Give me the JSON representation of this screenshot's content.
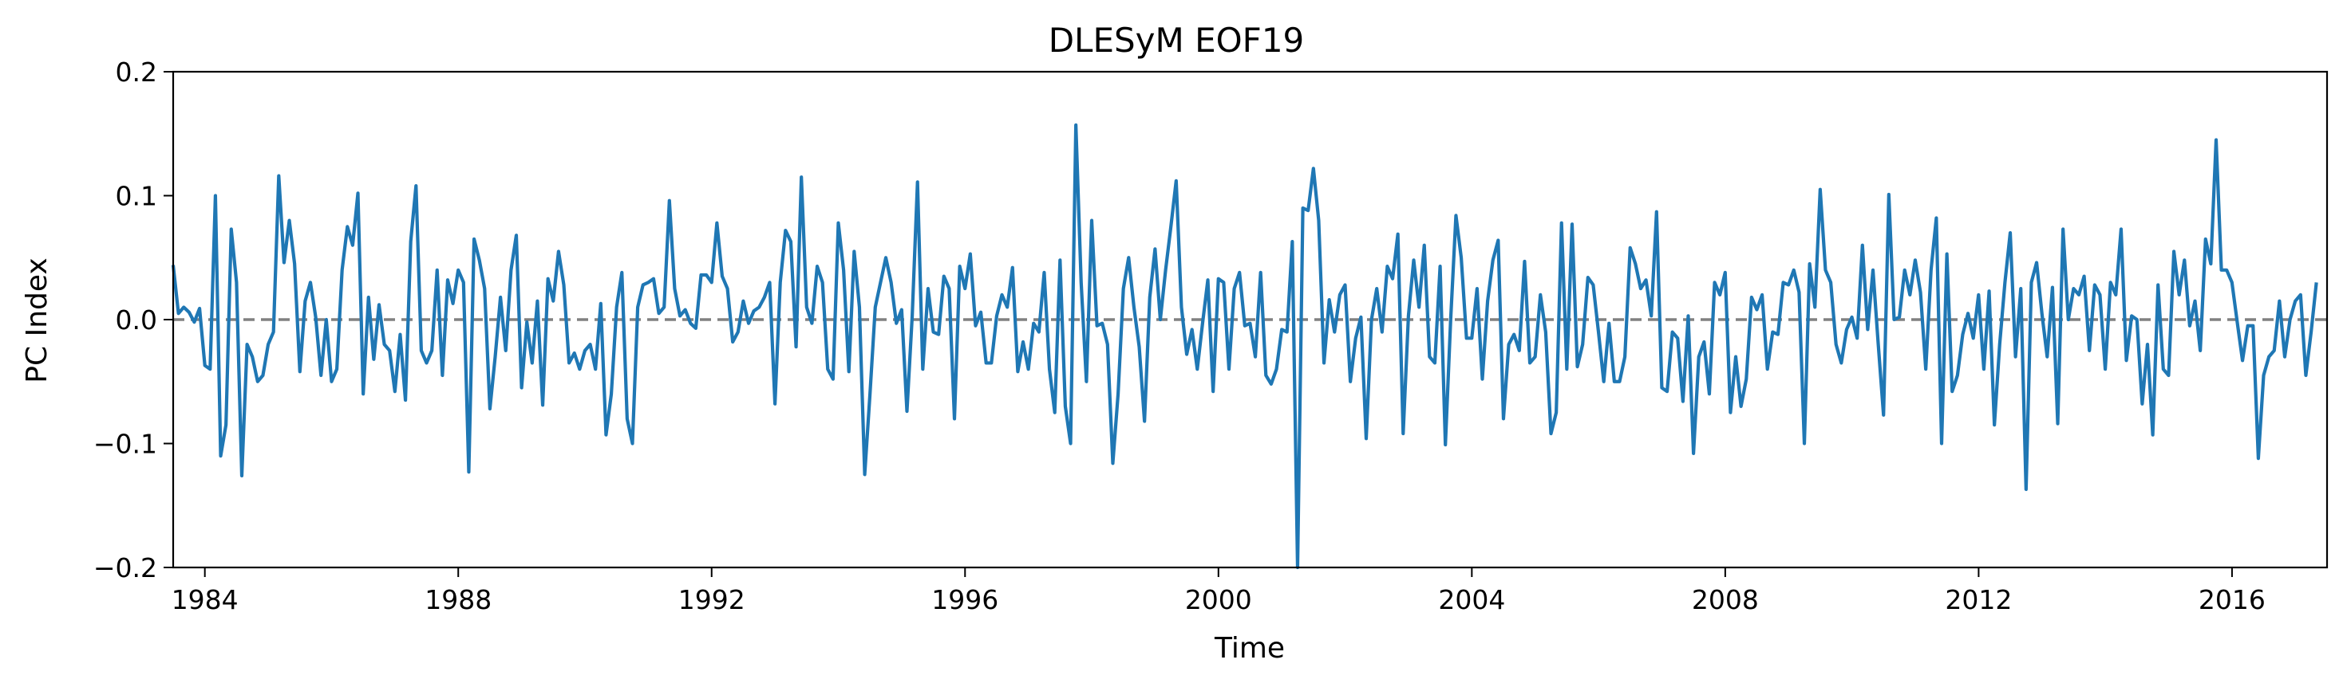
{
  "chart_data": {
    "type": "line",
    "title": "DLESyM  EOF19",
    "xlabel": "Time",
    "ylabel": "PC Index",
    "xlim": [
      1983.5,
      2017.5
    ],
    "ylim": [
      -0.2,
      0.2
    ],
    "xticks": [
      1984,
      1988,
      1992,
      1996,
      2000,
      2004,
      2008,
      2012,
      2016
    ],
    "xtick_labels": [
      "1984",
      "1988",
      "1992",
      "1996",
      "2000",
      "2004",
      "2008",
      "2012",
      "2016"
    ],
    "yticks": [
      -0.2,
      -0.1,
      0.0,
      0.1,
      0.2
    ],
    "ytick_labels": [
      "−0.2",
      "−0.1",
      "0.0",
      "0.1",
      "0.2"
    ],
    "grid": false,
    "zero_line": {
      "y": 0.0,
      "style": "dashed",
      "color": "#808080"
    },
    "series": [
      {
        "color": "#1f77b4",
        "x_start": 1983.5,
        "x_step": 0.08333,
        "values": [
          0.044,
          0.005,
          0.01,
          0.006,
          -0.002,
          0.009,
          -0.037,
          -0.04,
          0.1,
          -0.11,
          -0.085,
          0.073,
          0.03,
          -0.126,
          -0.02,
          -0.03,
          -0.05,
          -0.045,
          -0.02,
          -0.01,
          0.116,
          0.046,
          0.08,
          0.045,
          -0.042,
          0.015,
          0.03,
          0.002,
          -0.045,
          0.0,
          -0.05,
          -0.04,
          0.04,
          0.075,
          0.06,
          0.102,
          -0.06,
          0.018,
          -0.032,
          0.012,
          -0.02,
          -0.025,
          -0.058,
          -0.012,
          -0.065,
          0.063,
          0.108,
          -0.025,
          -0.035,
          -0.025,
          0.04,
          -0.045,
          0.032,
          0.013,
          0.04,
          0.03,
          -0.123,
          0.065,
          0.048,
          0.025,
          -0.072,
          -0.03,
          0.018,
          -0.025,
          0.04,
          0.068,
          -0.055,
          -0.002,
          -0.035,
          0.015,
          -0.069,
          0.033,
          0.015,
          0.055,
          0.028,
          -0.035,
          -0.027,
          -0.04,
          -0.025,
          -0.02,
          -0.04,
          0.013,
          -0.093,
          -0.06,
          0.01,
          0.038,
          -0.08,
          -0.1,
          0.01,
          0.028,
          0.03,
          0.033,
          0.005,
          0.01,
          0.096,
          0.025,
          0.003,
          0.008,
          -0.003,
          -0.007,
          0.036,
          0.036,
          0.03,
          0.078,
          0.035,
          0.025,
          -0.018,
          -0.01,
          0.015,
          -0.003,
          0.007,
          0.01,
          0.018,
          0.03,
          -0.068,
          0.03,
          0.072,
          0.063,
          -0.022,
          0.115,
          0.01,
          -0.003,
          0.043,
          0.03,
          -0.04,
          -0.048,
          0.078,
          0.04,
          -0.042,
          0.055,
          0.01,
          -0.125,
          -0.06,
          0.01,
          0.03,
          0.05,
          0.03,
          -0.003,
          0.008,
          -0.074,
          0.003,
          0.111,
          -0.04,
          0.025,
          -0.01,
          -0.012,
          0.035,
          0.025,
          -0.08,
          0.043,
          0.025,
          0.053,
          -0.005,
          0.006,
          -0.035,
          -0.035,
          0.003,
          0.02,
          0.01,
          0.042,
          -0.042,
          -0.018,
          -0.04,
          -0.003,
          -0.01,
          0.038,
          -0.04,
          -0.075,
          0.048,
          -0.07,
          -0.1,
          0.157,
          0.03,
          -0.05,
          0.08,
          -0.005,
          -0.003,
          -0.02,
          -0.116,
          -0.06,
          0.025,
          0.05,
          0.01,
          -0.022,
          -0.082,
          0.018,
          0.057,
          0.0,
          0.04,
          0.075,
          0.112,
          0.01,
          -0.028,
          -0.008,
          -0.04,
          -0.003,
          0.032,
          -0.058,
          0.033,
          0.03,
          -0.04,
          0.025,
          0.038,
          -0.005,
          -0.003,
          -0.03,
          0.038,
          -0.045,
          -0.052,
          -0.04,
          -0.008,
          -0.01,
          0.063,
          -0.2,
          0.09,
          0.088,
          0.122,
          0.08,
          -0.035,
          0.016,
          -0.01,
          0.02,
          0.028,
          -0.05,
          -0.015,
          0.002,
          -0.096,
          0.0,
          0.025,
          -0.01,
          0.043,
          0.033,
          0.069,
          -0.092,
          0.003,
          0.048,
          0.01,
          0.06,
          -0.03,
          -0.035,
          0.043,
          -0.101,
          0.0,
          0.084,
          0.05,
          -0.015,
          -0.015,
          0.025,
          -0.048,
          0.015,
          0.048,
          0.064,
          -0.08,
          -0.02,
          -0.012,
          -0.025,
          0.047,
          -0.035,
          -0.03,
          0.02,
          -0.01,
          -0.092,
          -0.075,
          0.078,
          -0.04,
          0.077,
          -0.038,
          -0.02,
          0.034,
          0.028,
          -0.01,
          -0.05,
          -0.003,
          -0.05,
          -0.05,
          -0.03,
          0.058,
          0.045,
          0.025,
          0.032,
          0.003,
          0.087,
          -0.055,
          -0.058,
          -0.01,
          -0.015,
          -0.066,
          0.003,
          -0.108,
          -0.03,
          -0.018,
          -0.06,
          0.03,
          0.02,
          0.038,
          -0.075,
          -0.03,
          -0.07,
          -0.048,
          0.018,
          0.008,
          0.02,
          -0.04,
          -0.01,
          -0.012,
          0.03,
          0.028,
          0.04,
          0.022,
          -0.1,
          0.045,
          0.01,
          0.105,
          0.04,
          0.03,
          -0.02,
          -0.035,
          -0.008,
          0.002,
          -0.015,
          0.06,
          -0.008,
          0.04,
          -0.02,
          -0.077,
          0.101,
          0.0,
          0.002,
          0.04,
          0.02,
          0.048,
          0.022,
          -0.04,
          0.04,
          0.082,
          -0.1,
          0.053,
          -0.058,
          -0.045,
          -0.012,
          0.005,
          -0.015,
          0.02,
          -0.04,
          0.023,
          -0.085,
          -0.02,
          0.03,
          0.07,
          -0.03,
          0.025,
          -0.137,
          0.03,
          0.046,
          0.005,
          -0.03,
          0.026,
          -0.084,
          0.073,
          0.0,
          0.025,
          0.02,
          0.035,
          -0.025,
          0.028,
          0.02,
          -0.04,
          0.03,
          0.02,
          0.073,
          -0.033,
          0.003,
          0.0,
          -0.068,
          -0.02,
          -0.093,
          0.028,
          -0.04,
          -0.045,
          0.055,
          0.02,
          0.048,
          -0.005,
          0.015,
          -0.025,
          0.065,
          0.045,
          0.145,
          0.04,
          0.04,
          0.03,
          -0.002,
          -0.033,
          -0.005,
          -0.005,
          -0.112,
          -0.045,
          -0.03,
          -0.025,
          0.015,
          -0.03,
          0.0,
          0.015,
          0.02,
          -0.045,
          -0.01,
          0.03
        ]
      }
    ]
  }
}
